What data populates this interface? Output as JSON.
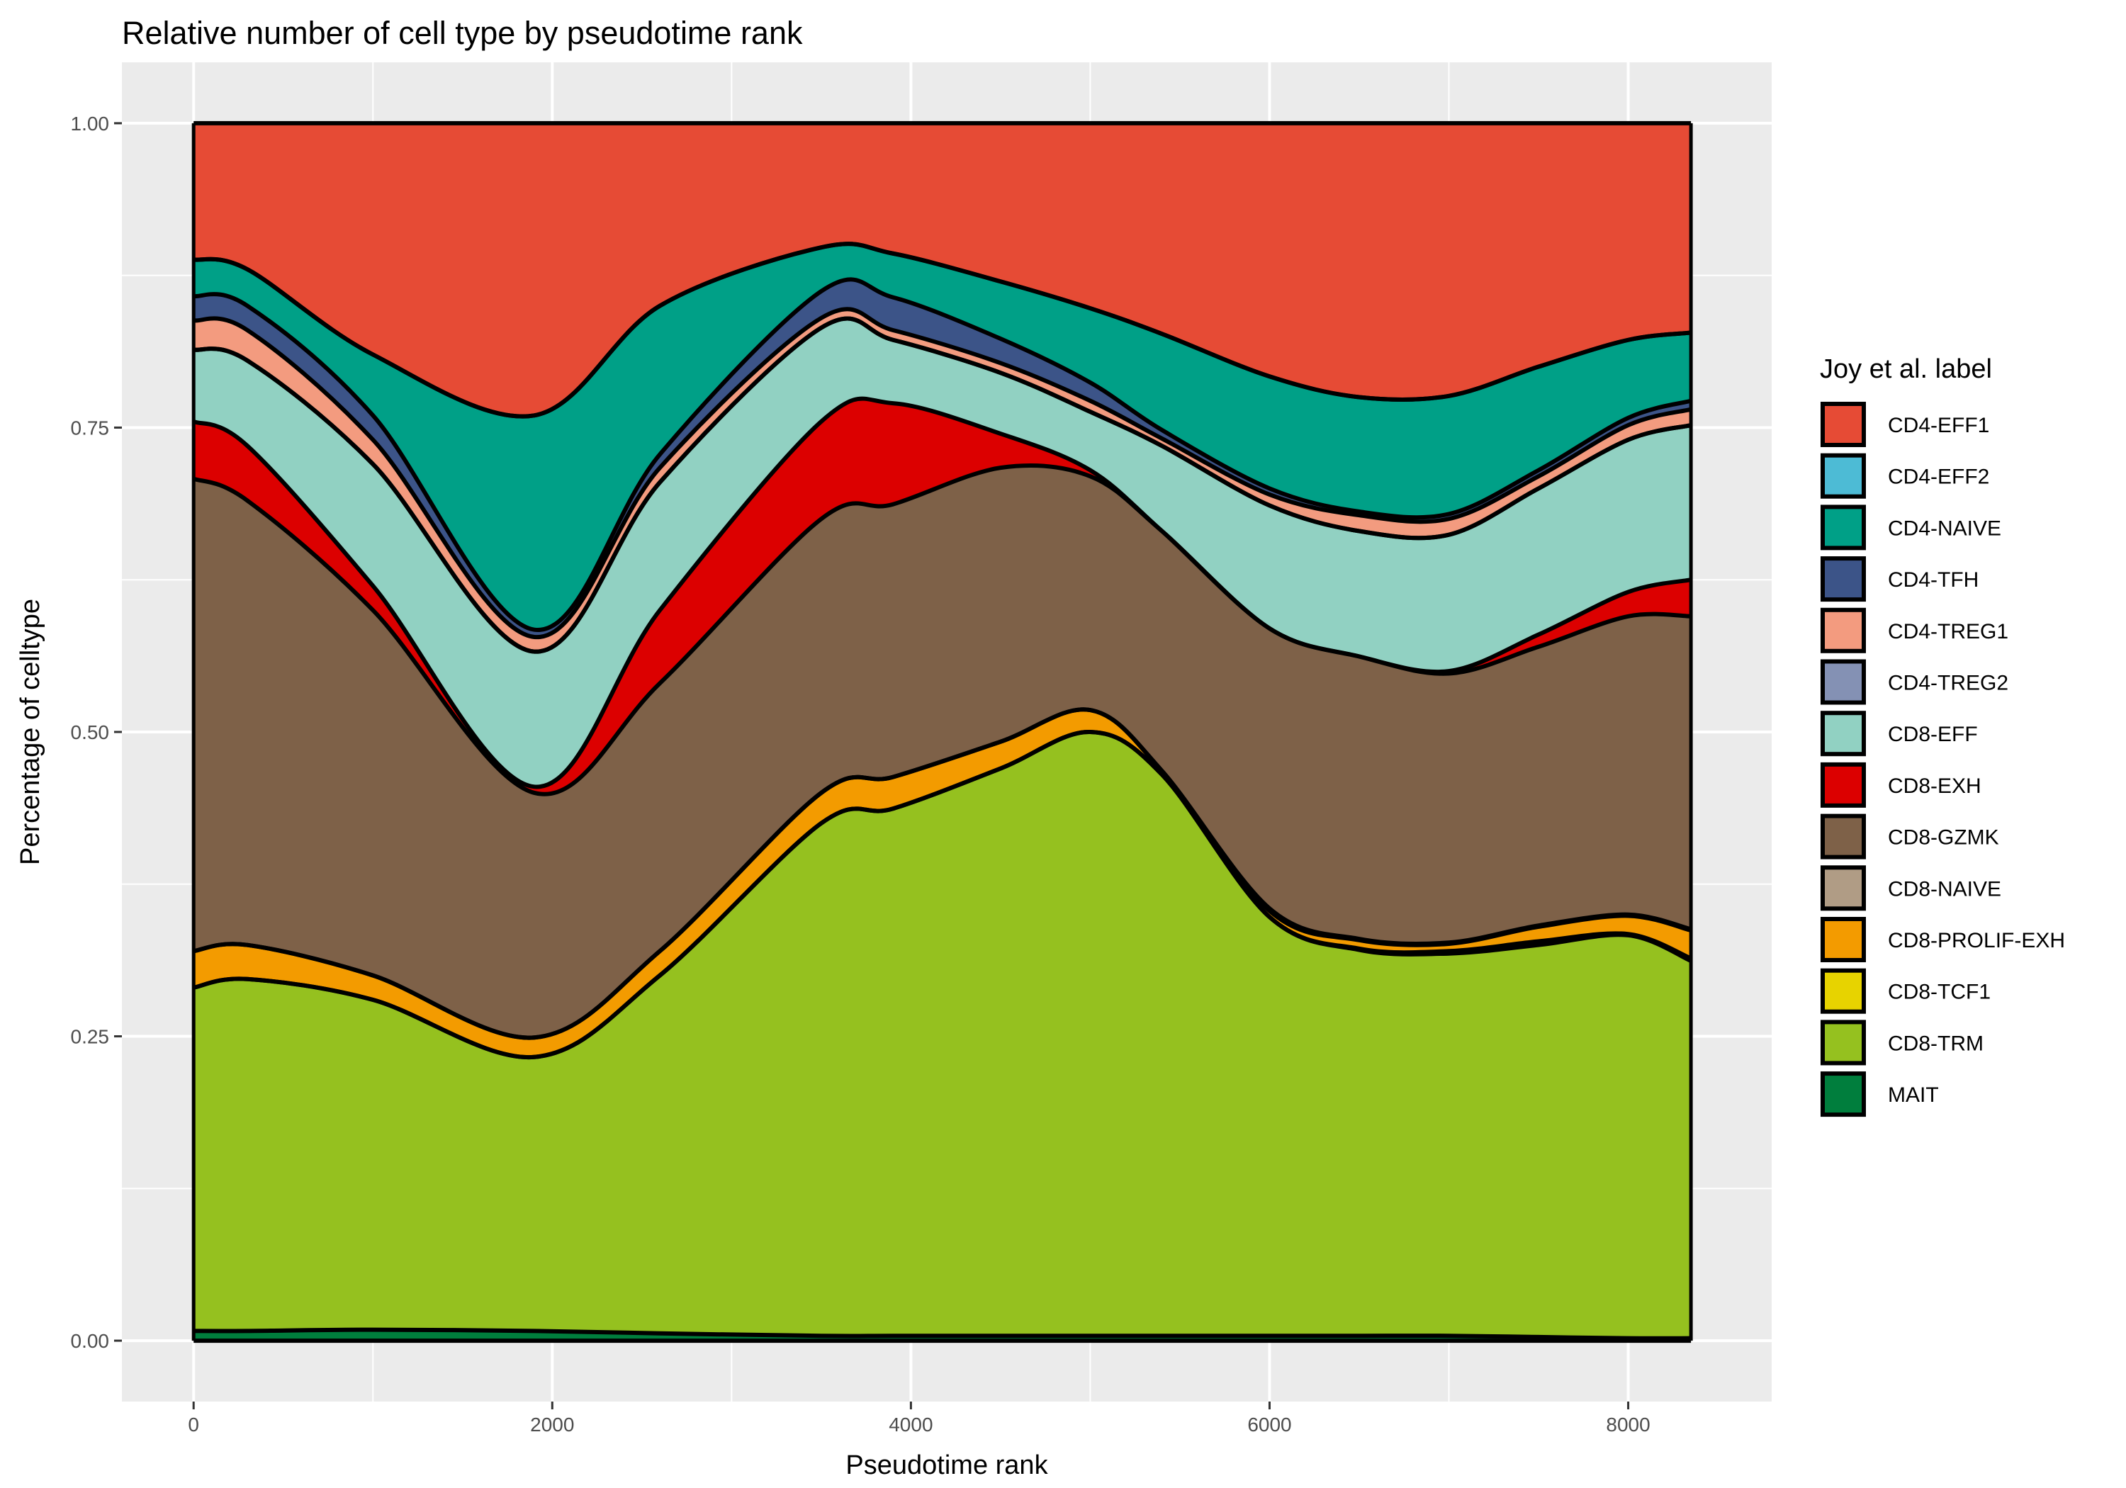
{
  "chart_data": {
    "type": "area",
    "stacking": "fill",
    "title": "Relative number of cell type by pseudotime rank",
    "xlabel": "Pseudotime rank",
    "ylabel": "Percentage of celltype",
    "xlim": [
      -400,
      8800
    ],
    "ylim": [
      -0.05,
      1.05
    ],
    "x_data_range": [
      0,
      8350
    ],
    "x_ticks": [
      0,
      2000,
      4000,
      6000,
      8000
    ],
    "x_tick_labels": [
      "0",
      "2000",
      "4000",
      "6000",
      "8000"
    ],
    "y_ticks": [
      0,
      0.25,
      0.5,
      0.75,
      1.0
    ],
    "y_tick_labels": [
      "0.00",
      "0.25",
      "0.50",
      "0.75",
      "1.00"
    ],
    "grid": true,
    "panel_background": "#EBEBEB",
    "outline_color": "#000000",
    "legend": {
      "title": "Joy et al. label",
      "position": "right",
      "items": [
        {
          "label": "CD4-EFF1",
          "color": "#E64B35"
        },
        {
          "label": "CD4-EFF2",
          "color": "#4DBBD5"
        },
        {
          "label": "CD4-NAIVE",
          "color": "#00A087"
        },
        {
          "label": "CD4-TFH",
          "color": "#3C5488"
        },
        {
          "label": "CD4-TREG1",
          "color": "#F39B7F"
        },
        {
          "label": "CD4-TREG2",
          "color": "#8491B4"
        },
        {
          "label": "CD8-EFF",
          "color": "#91D1C2"
        },
        {
          "label": "CD8-EXH",
          "color": "#DC0000"
        },
        {
          "label": "CD8-GZMK",
          "color": "#7E6148"
        },
        {
          "label": "CD8-NAIVE",
          "color": "#B09C85"
        },
        {
          "label": "CD8-PROLIF-EXH",
          "color": "#F39B00"
        },
        {
          "label": "CD8-TCF1",
          "color": "#E7D300"
        },
        {
          "label": "CD8-TRM",
          "color": "#95C11F"
        },
        {
          "label": "MAIT",
          "color": "#007E3D"
        }
      ]
    },
    "x": [
      0,
      300,
      1000,
      1900,
      2600,
      3500,
      3900,
      4500,
      5000,
      5400,
      6000,
      6500,
      7000,
      7500,
      8000,
      8350
    ],
    "boundaries": [
      {
        "upper_of": "MAIT",
        "values": [
          0.008,
          0.008,
          0.009,
          0.008,
          0.006,
          0.004,
          0.004,
          0.004,
          0.004,
          0.004,
          0.004,
          0.004,
          0.004,
          0.003,
          0.002,
          0.002
        ]
      },
      {
        "upper_of": "CD8-TRM",
        "values": [
          0.29,
          0.297,
          0.28,
          0.233,
          0.3,
          0.425,
          0.437,
          0.47,
          0.5,
          0.465,
          0.348,
          0.321,
          0.318,
          0.325,
          0.333,
          0.312
        ]
      },
      {
        "upper_of": "CD8-TCF1",
        "values": [
          0.29,
          0.297,
          0.28,
          0.233,
          0.3,
          0.425,
          0.437,
          0.47,
          0.5,
          0.465,
          0.348,
          0.322,
          0.32,
          0.328,
          0.334,
          0.314
        ]
      },
      {
        "upper_of": "CD8-PROLIF-EXH",
        "values": [
          0.32,
          0.325,
          0.3,
          0.249,
          0.32,
          0.45,
          0.463,
          0.492,
          0.518,
          0.468,
          0.353,
          0.329,
          0.326,
          0.34,
          0.349,
          0.337
        ]
      },
      {
        "upper_of": "CD8-NAIVE",
        "values": [
          0.32,
          0.325,
          0.3,
          0.249,
          0.32,
          0.45,
          0.463,
          0.492,
          0.518,
          0.468,
          0.355,
          0.33,
          0.327,
          0.341,
          0.35,
          0.338
        ]
      },
      {
        "upper_of": "CD8-GZMK",
        "values": [
          0.708,
          0.69,
          0.6,
          0.45,
          0.54,
          0.675,
          0.687,
          0.717,
          0.71,
          0.665,
          0.585,
          0.562,
          0.548,
          0.57,
          0.595,
          0.595
        ]
      },
      {
        "upper_of": "CD8-EXH",
        "values": [
          0.755,
          0.735,
          0.62,
          0.455,
          0.6,
          0.755,
          0.77,
          0.745,
          0.715,
          0.665,
          0.585,
          0.562,
          0.55,
          0.58,
          0.615,
          0.625
        ]
      },
      {
        "upper_of": "CD8-EFF",
        "values": [
          0.814,
          0.805,
          0.72,
          0.566,
          0.705,
          0.832,
          0.822,
          0.795,
          0.763,
          0.735,
          0.686,
          0.665,
          0.662,
          0.7,
          0.74,
          0.752
        ]
      },
      {
        "upper_of": "CD4-TREG2",
        "values": [
          0.814,
          0.805,
          0.72,
          0.566,
          0.705,
          0.832,
          0.822,
          0.795,
          0.763,
          0.735,
          0.686,
          0.665,
          0.662,
          0.7,
          0.74,
          0.752
        ]
      },
      {
        "upper_of": "CD4-TREG1",
        "values": [
          0.838,
          0.83,
          0.74,
          0.578,
          0.717,
          0.84,
          0.83,
          0.803,
          0.772,
          0.741,
          0.695,
          0.678,
          0.675,
          0.71,
          0.752,
          0.765
        ]
      },
      {
        "upper_of": "CD4-TFH",
        "values": [
          0.858,
          0.85,
          0.76,
          0.584,
          0.728,
          0.862,
          0.857,
          0.823,
          0.787,
          0.748,
          0.7,
          0.681,
          0.679,
          0.715,
          0.758,
          0.772
        ]
      },
      {
        "upper_of": "CD4-NAIVE",
        "values": [
          0.888,
          0.88,
          0.81,
          0.76,
          0.85,
          0.898,
          0.893,
          0.87,
          0.848,
          0.827,
          0.792,
          0.775,
          0.776,
          0.8,
          0.822,
          0.828
        ]
      },
      {
        "upper_of": "CD4-EFF2",
        "values": [
          0.888,
          0.88,
          0.81,
          0.76,
          0.85,
          0.898,
          0.893,
          0.87,
          0.848,
          0.827,
          0.792,
          0.775,
          0.776,
          0.8,
          0.822,
          0.828
        ]
      },
      {
        "upper_of": "CD4-EFF1",
        "values": [
          1.0,
          1.0,
          1.0,
          1.0,
          1.0,
          1.0,
          1.0,
          1.0,
          1.0,
          1.0,
          1.0,
          1.0,
          1.0,
          1.0,
          1.0,
          1.0
        ]
      }
    ]
  }
}
